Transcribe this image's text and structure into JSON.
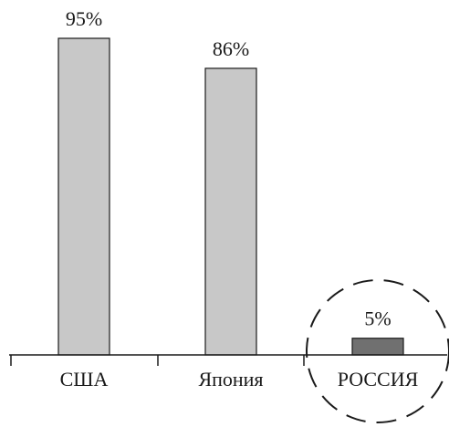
{
  "chart_data": {
    "type": "bar",
    "categories": [
      "США",
      "Япония",
      "РОССИЯ"
    ],
    "values": [
      95,
      86,
      5
    ],
    "value_labels": [
      "95%",
      "86%",
      "5%"
    ],
    "ylim": [
      0,
      100
    ],
    "grid": false,
    "colors": {
      "default_bar": "#c8c8c8",
      "highlight_bar": "#707070",
      "outline": "#1a1a1a",
      "highlight_circle": "#1a1a1a"
    },
    "highlighted_category": "РОССИЯ"
  }
}
